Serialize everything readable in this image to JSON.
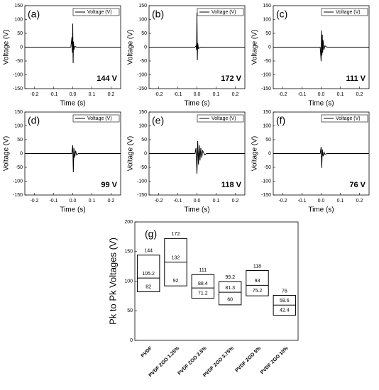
{
  "chart_data": [
    {
      "type": "line",
      "label": "(a)",
      "annotation": "144 V",
      "xlabel": "Time (s)",
      "ylabel": "Voltage (V)",
      "x": [
        -0.25,
        -0.01,
        -0.004,
        -0.002,
        0,
        0.002,
        0.004,
        0.006,
        0.01,
        0.02,
        0.25
      ],
      "series": [
        {
          "name": "Voltage (V)",
          "color": "#000000",
          "values": [
            0,
            0,
            37,
            -20,
            85,
            -58,
            20,
            -10,
            3,
            0,
            0
          ]
        }
      ],
      "xlim": [
        -0.25,
        0.25
      ],
      "xticks": [
        -0.2,
        -0.1,
        {
          "value": 0,
          "label": "0.0"
        },
        0.1,
        0.2
      ],
      "ylim": [
        -150,
        150
      ],
      "yticks": [
        -150,
        -100,
        -50,
        0,
        50,
        100,
        150
      ]
    },
    {
      "type": "line",
      "label": "(b)",
      "annotation": "172 V",
      "xlabel": "Time (s)",
      "ylabel": "Voltage (V)",
      "x": [
        -0.25,
        -0.01,
        -0.004,
        -0.002,
        0,
        0.002,
        0.004,
        0.008,
        0.02,
        0.25
      ],
      "series": [
        {
          "name": "Voltage (V)",
          "color": "#000000",
          "values": [
            0,
            0,
            5,
            -10,
            125,
            -47,
            15,
            -5,
            0,
            0
          ]
        }
      ],
      "xlim": [
        -0.25,
        0.25
      ],
      "xticks": [
        -0.2,
        -0.1,
        {
          "value": 0,
          "label": "0.0"
        },
        0.1,
        0.2
      ],
      "ylim": [
        -150,
        150
      ],
      "yticks": [
        -150,
        -100,
        -50,
        0,
        50,
        100,
        150
      ]
    },
    {
      "type": "line",
      "label": "(c)",
      "annotation": "111 V",
      "xlabel": "Time (s)",
      "ylabel": "Voltage (V)",
      "x": [
        -0.25,
        -0.005,
        0,
        0.002,
        0.004,
        0.006,
        0.008,
        0.01,
        0.014,
        0.02,
        0.03,
        0.25
      ],
      "series": [
        {
          "name": "Voltage (V)",
          "color": "#000000",
          "values": [
            0,
            0,
            -51,
            60,
            -30,
            45,
            -20,
            25,
            -10,
            5,
            0,
            0
          ]
        }
      ],
      "xlim": [
        -0.25,
        0.25
      ],
      "xticks": [
        -0.2,
        -0.1,
        {
          "value": 0,
          "label": "0.0"
        },
        0.1,
        0.2
      ],
      "ylim": [
        -150,
        150
      ],
      "yticks": [
        -150,
        -100,
        -50,
        0,
        50,
        100,
        150
      ]
    },
    {
      "type": "line",
      "label": "(d)",
      "annotation": "99 V",
      "xlabel": "Time (s)",
      "ylabel": "Voltage (V)",
      "x": [
        -0.25,
        -0.005,
        0,
        0.003,
        0.006,
        0.01,
        0.015,
        0.02,
        0.03,
        0.25
      ],
      "series": [
        {
          "name": "Voltage (V)",
          "color": "#000000",
          "values": [
            0,
            0,
            30,
            -68,
            20,
            -15,
            10,
            -5,
            0,
            0
          ]
        }
      ],
      "xlim": [
        -0.25,
        0.25
      ],
      "xticks": [
        -0.2,
        -0.1,
        {
          "value": 0,
          "label": "0.0"
        },
        0.1,
        0.2
      ],
      "ylim": [
        -150,
        150
      ],
      "yticks": [
        -150,
        -100,
        -50,
        0,
        50,
        100,
        150
      ]
    },
    {
      "type": "line",
      "label": "(e)",
      "annotation": "118 V",
      "xlabel": "Time (s)",
      "ylabel": "Voltage (V)",
      "x": [
        -0.25,
        -0.01,
        -0.005,
        0,
        0.004,
        0.008,
        0.012,
        0.016,
        0.02,
        0.025,
        0.03,
        0.04,
        0.05,
        0.25
      ],
      "series": [
        {
          "name": "Voltage (V)",
          "color": "#000000",
          "values": [
            0,
            0,
            20,
            -73,
            45,
            -40,
            30,
            -25,
            20,
            -15,
            10,
            -5,
            0,
            0
          ]
        }
      ],
      "xlim": [
        -0.25,
        0.25
      ],
      "xticks": [
        -0.2,
        -0.1,
        {
          "value": 0,
          "label": "0.0"
        },
        0.1,
        0.2
      ],
      "ylim": [
        -150,
        150
      ],
      "yticks": [
        -150,
        -100,
        -50,
        0,
        50,
        100,
        150
      ]
    },
    {
      "type": "line",
      "label": "(f)",
      "annotation": "76 V",
      "xlabel": "Time (s)",
      "ylabel": "Voltage (V)",
      "x": [
        -0.25,
        -0.005,
        0,
        0.003,
        0.006,
        0.01,
        0.015,
        0.02,
        0.03,
        0.25
      ],
      "series": [
        {
          "name": "Voltage (V)",
          "color": "#000000",
          "values": [
            0,
            0,
            24,
            -52,
            15,
            -10,
            5,
            -3,
            0,
            0
          ]
        }
      ],
      "xlim": [
        -0.25,
        0.25
      ],
      "xticks": [
        -0.2,
        -0.1,
        {
          "value": 0,
          "label": "0.0"
        },
        0.1,
        0.2
      ],
      "ylim": [
        -150,
        150
      ],
      "yticks": [
        -150,
        -100,
        -50,
        0,
        50,
        100,
        150
      ]
    },
    {
      "type": "box",
      "label": "(g)",
      "ylabel": "Pk to Pk Voltages (V)",
      "categories": [
        "PVDF",
        "PVDF ZGO 1.25%",
        "PVDF ZGO 2.5%",
        "PVDF ZGO 3.75%",
        "PVDF ZGO 5%",
        "PVDF ZGO 10%"
      ],
      "boxes": [
        [
          144,
          105.2,
          82
        ],
        [
          172,
          132,
          92
        ],
        [
          111,
          88.4,
          71.2
        ],
        [
          99.2,
          81.3,
          60
        ],
        [
          118,
          93,
          75.2
        ],
        [
          76,
          59.6,
          42.4
        ]
      ],
      "color": "#000000",
      "ylim": [
        0,
        200
      ],
      "yticks": [
        0,
        50,
        100,
        150,
        200
      ]
    }
  ]
}
